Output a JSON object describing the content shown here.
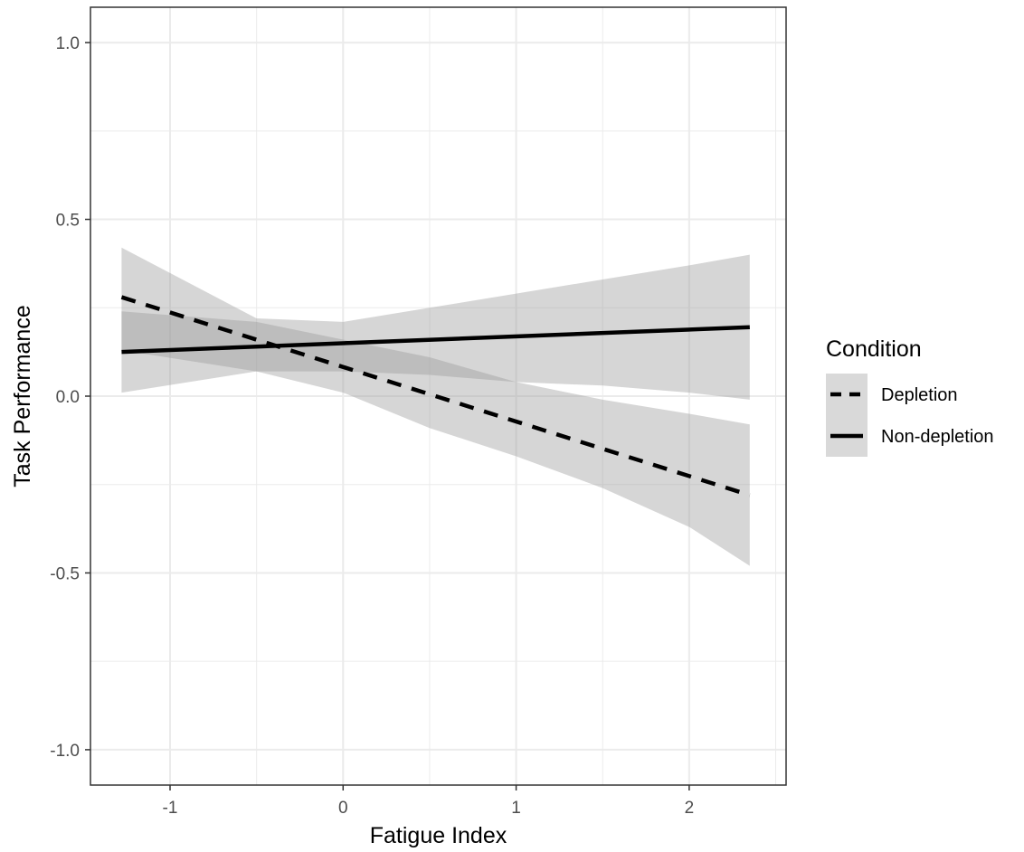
{
  "chart_data": {
    "type": "line",
    "xlabel": "Fatigue Index",
    "ylabel": "Task Performance",
    "xlim": [
      -1.46,
      2.56
    ],
    "ylim": [
      -1.1,
      1.1
    ],
    "x_ticks": [
      -1,
      0,
      1,
      2
    ],
    "x_tick_labels": [
      "-1",
      "0",
      "1",
      "2"
    ],
    "y_ticks": [
      -1.0,
      -0.5,
      0.0,
      0.5,
      1.0
    ],
    "y_tick_labels": [
      "-1.0",
      "-0.5",
      "0.0",
      "0.5",
      "1.0"
    ],
    "grid": true,
    "legend": {
      "title": "Condition",
      "position": "right"
    },
    "series": [
      {
        "name": "Depletion",
        "linestyle": "dashed",
        "x": [
          -1.28,
          2.35
        ],
        "y": [
          0.28,
          -0.28
        ],
        "ci_lower": [
          {
            "x": -1.28,
            "y": 0.01
          },
          {
            "x": -0.5,
            "y": 0.07
          },
          {
            "x": 0.0,
            "y": 0.07
          },
          {
            "x": 0.5,
            "y": 0.06
          },
          {
            "x": 1.0,
            "y": 0.04
          },
          {
            "x": 1.5,
            "y": 0.03
          },
          {
            "x": 2.0,
            "y": 0.01
          },
          {
            "x": 2.35,
            "y": -0.01
          }
        ],
        "ci_upper": [
          {
            "x": -1.28,
            "y": 0.42
          },
          {
            "x": -0.5,
            "y": 0.22
          },
          {
            "x": 0.0,
            "y": 0.21
          },
          {
            "x": 0.5,
            "y": 0.25
          },
          {
            "x": 1.0,
            "y": 0.29
          },
          {
            "x": 1.5,
            "y": 0.33
          },
          {
            "x": 2.0,
            "y": 0.37
          },
          {
            "x": 2.35,
            "y": 0.4
          }
        ]
      },
      {
        "name": "Non-depletion",
        "linestyle": "solid",
        "x": [
          -1.28,
          2.35
        ],
        "y": [
          0.125,
          0.195
        ],
        "ci_lower": [
          {
            "x": -1.28,
            "y": 0.13
          },
          {
            "x": -0.5,
            "y": 0.07
          },
          {
            "x": 0.0,
            "y": 0.01
          },
          {
            "x": 0.5,
            "y": -0.09
          },
          {
            "x": 1.0,
            "y": -0.17
          },
          {
            "x": 1.5,
            "y": -0.26
          },
          {
            "x": 2.0,
            "y": -0.37
          },
          {
            "x": 2.35,
            "y": -0.48
          }
        ],
        "ci_upper": [
          {
            "x": -1.28,
            "y": 0.24
          },
          {
            "x": -0.5,
            "y": 0.21
          },
          {
            "x": 0.0,
            "y": 0.16
          },
          {
            "x": 0.5,
            "y": 0.11
          },
          {
            "x": 1.0,
            "y": 0.04
          },
          {
            "x": 1.5,
            "y": -0.01
          },
          {
            "x": 2.0,
            "y": -0.05
          },
          {
            "x": 2.35,
            "y": -0.08
          }
        ]
      }
    ],
    "colors": {
      "ribbon": "#999999",
      "line": "#000000",
      "grid": "#ebebeb",
      "panel_border": "#333333",
      "legend_key_bg": "#d9d9d9"
    }
  }
}
